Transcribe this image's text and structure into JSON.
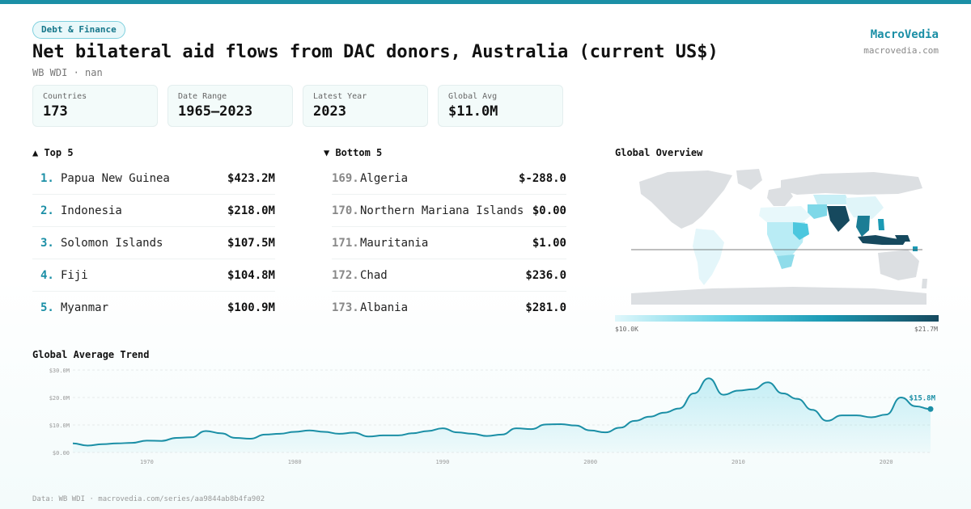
{
  "header": {
    "badge": "Debt & Finance",
    "title": "Net bilateral aid flows from DAC donors, Australia (current US$)",
    "subtitle": "WB WDI · nan",
    "brand": "MacroVedia",
    "brand_url": "macrovedia.com"
  },
  "stats": [
    {
      "label": "Countries",
      "value": "173"
    },
    {
      "label": "Date Range",
      "value": "1965–2023"
    },
    {
      "label": "Latest Year",
      "value": "2023"
    },
    {
      "label": "Global Avg",
      "value": "$11.0M"
    }
  ],
  "top5": {
    "title": "▲ Top 5",
    "items": [
      {
        "rank": "1.",
        "name": "Papua New Guinea",
        "value": "$423.2M"
      },
      {
        "rank": "2.",
        "name": "Indonesia",
        "value": "$218.0M"
      },
      {
        "rank": "3.",
        "name": "Solomon Islands",
        "value": "$107.5M"
      },
      {
        "rank": "4.",
        "name": "Fiji",
        "value": "$104.8M"
      },
      {
        "rank": "5.",
        "name": "Myanmar",
        "value": "$100.9M"
      }
    ]
  },
  "bottom5": {
    "title": "▼ Bottom 5",
    "items": [
      {
        "rank": "169.",
        "name": "Algeria",
        "value": "$-288.0"
      },
      {
        "rank": "170.",
        "name": "Northern Mariana Islands",
        "value": "$0.00"
      },
      {
        "rank": "171.",
        "name": "Mauritania",
        "value": "$1.00"
      },
      {
        "rank": "172.",
        "name": "Chad",
        "value": "$236.0"
      },
      {
        "rank": "173.",
        "name": "Albania",
        "value": "$281.0"
      }
    ]
  },
  "map": {
    "title": "Global Overview",
    "legend_min": "$10.0K",
    "legend_max": "$21.7M",
    "colors": {
      "land": "#dcdfe2",
      "low": "#d9f3f8",
      "mid": "#5fd0e4",
      "high": "#1b9ab4",
      "max": "#16495e"
    }
  },
  "trend_title": "Global Average Trend",
  "footer": "Data: WB WDI · macrovedia.com/series/aa9844ab8b4fa902",
  "accent": "#1b8fa6",
  "chart_data": {
    "type": "area",
    "title": "Global Average Trend",
    "ylabel": "",
    "xlabel": "",
    "ylim": [
      0,
      30
    ],
    "xlim": [
      1965,
      2023
    ],
    "y_ticks": [
      0,
      10,
      20,
      30
    ],
    "y_tick_labels": [
      "$0.00",
      "$10.0M",
      "$20.0M",
      "$30.0M"
    ],
    "x_ticks": [
      1970,
      1980,
      1990,
      2000,
      2010,
      2020
    ],
    "end_label": "$15.8M",
    "series": [
      {
        "x": [
          1965,
          1966,
          1967,
          1968,
          1969,
          1970,
          1971,
          1972,
          1973,
          1974,
          1975,
          1976,
          1977,
          1978,
          1979,
          1980,
          1981,
          1982,
          1983,
          1984,
          1985,
          1986,
          1987,
          1988,
          1989,
          1990,
          1991,
          1992,
          1993,
          1994,
          1995,
          1996,
          1997,
          1998,
          1999,
          2000,
          2001,
          2002,
          2003,
          2004,
          2005,
          2006,
          2007,
          2008,
          2009,
          2010,
          2011,
          2012,
          2013,
          2014,
          2015,
          2016,
          2017,
          2018,
          2019,
          2020,
          2021,
          2022,
          2023
        ],
        "values": [
          3.3,
          2.5,
          3.0,
          3.3,
          3.5,
          4.3,
          4.2,
          5.3,
          5.5,
          7.8,
          7.0,
          5.3,
          5.0,
          6.5,
          6.8,
          7.5,
          8.0,
          7.5,
          6.8,
          7.2,
          5.8,
          6.2,
          6.2,
          7.0,
          7.8,
          8.8,
          7.3,
          6.8,
          6.0,
          6.5,
          8.8,
          8.5,
          10.2,
          10.3,
          9.8,
          8.0,
          7.3,
          9.0,
          11.5,
          13.0,
          14.5,
          16.0,
          21.5,
          27.0,
          21.0,
          22.5,
          23.0,
          25.5,
          21.5,
          19.5,
          15.5,
          11.5,
          13.5,
          13.5,
          12.8,
          13.8,
          20.0,
          16.8,
          15.8
        ]
      }
    ]
  }
}
